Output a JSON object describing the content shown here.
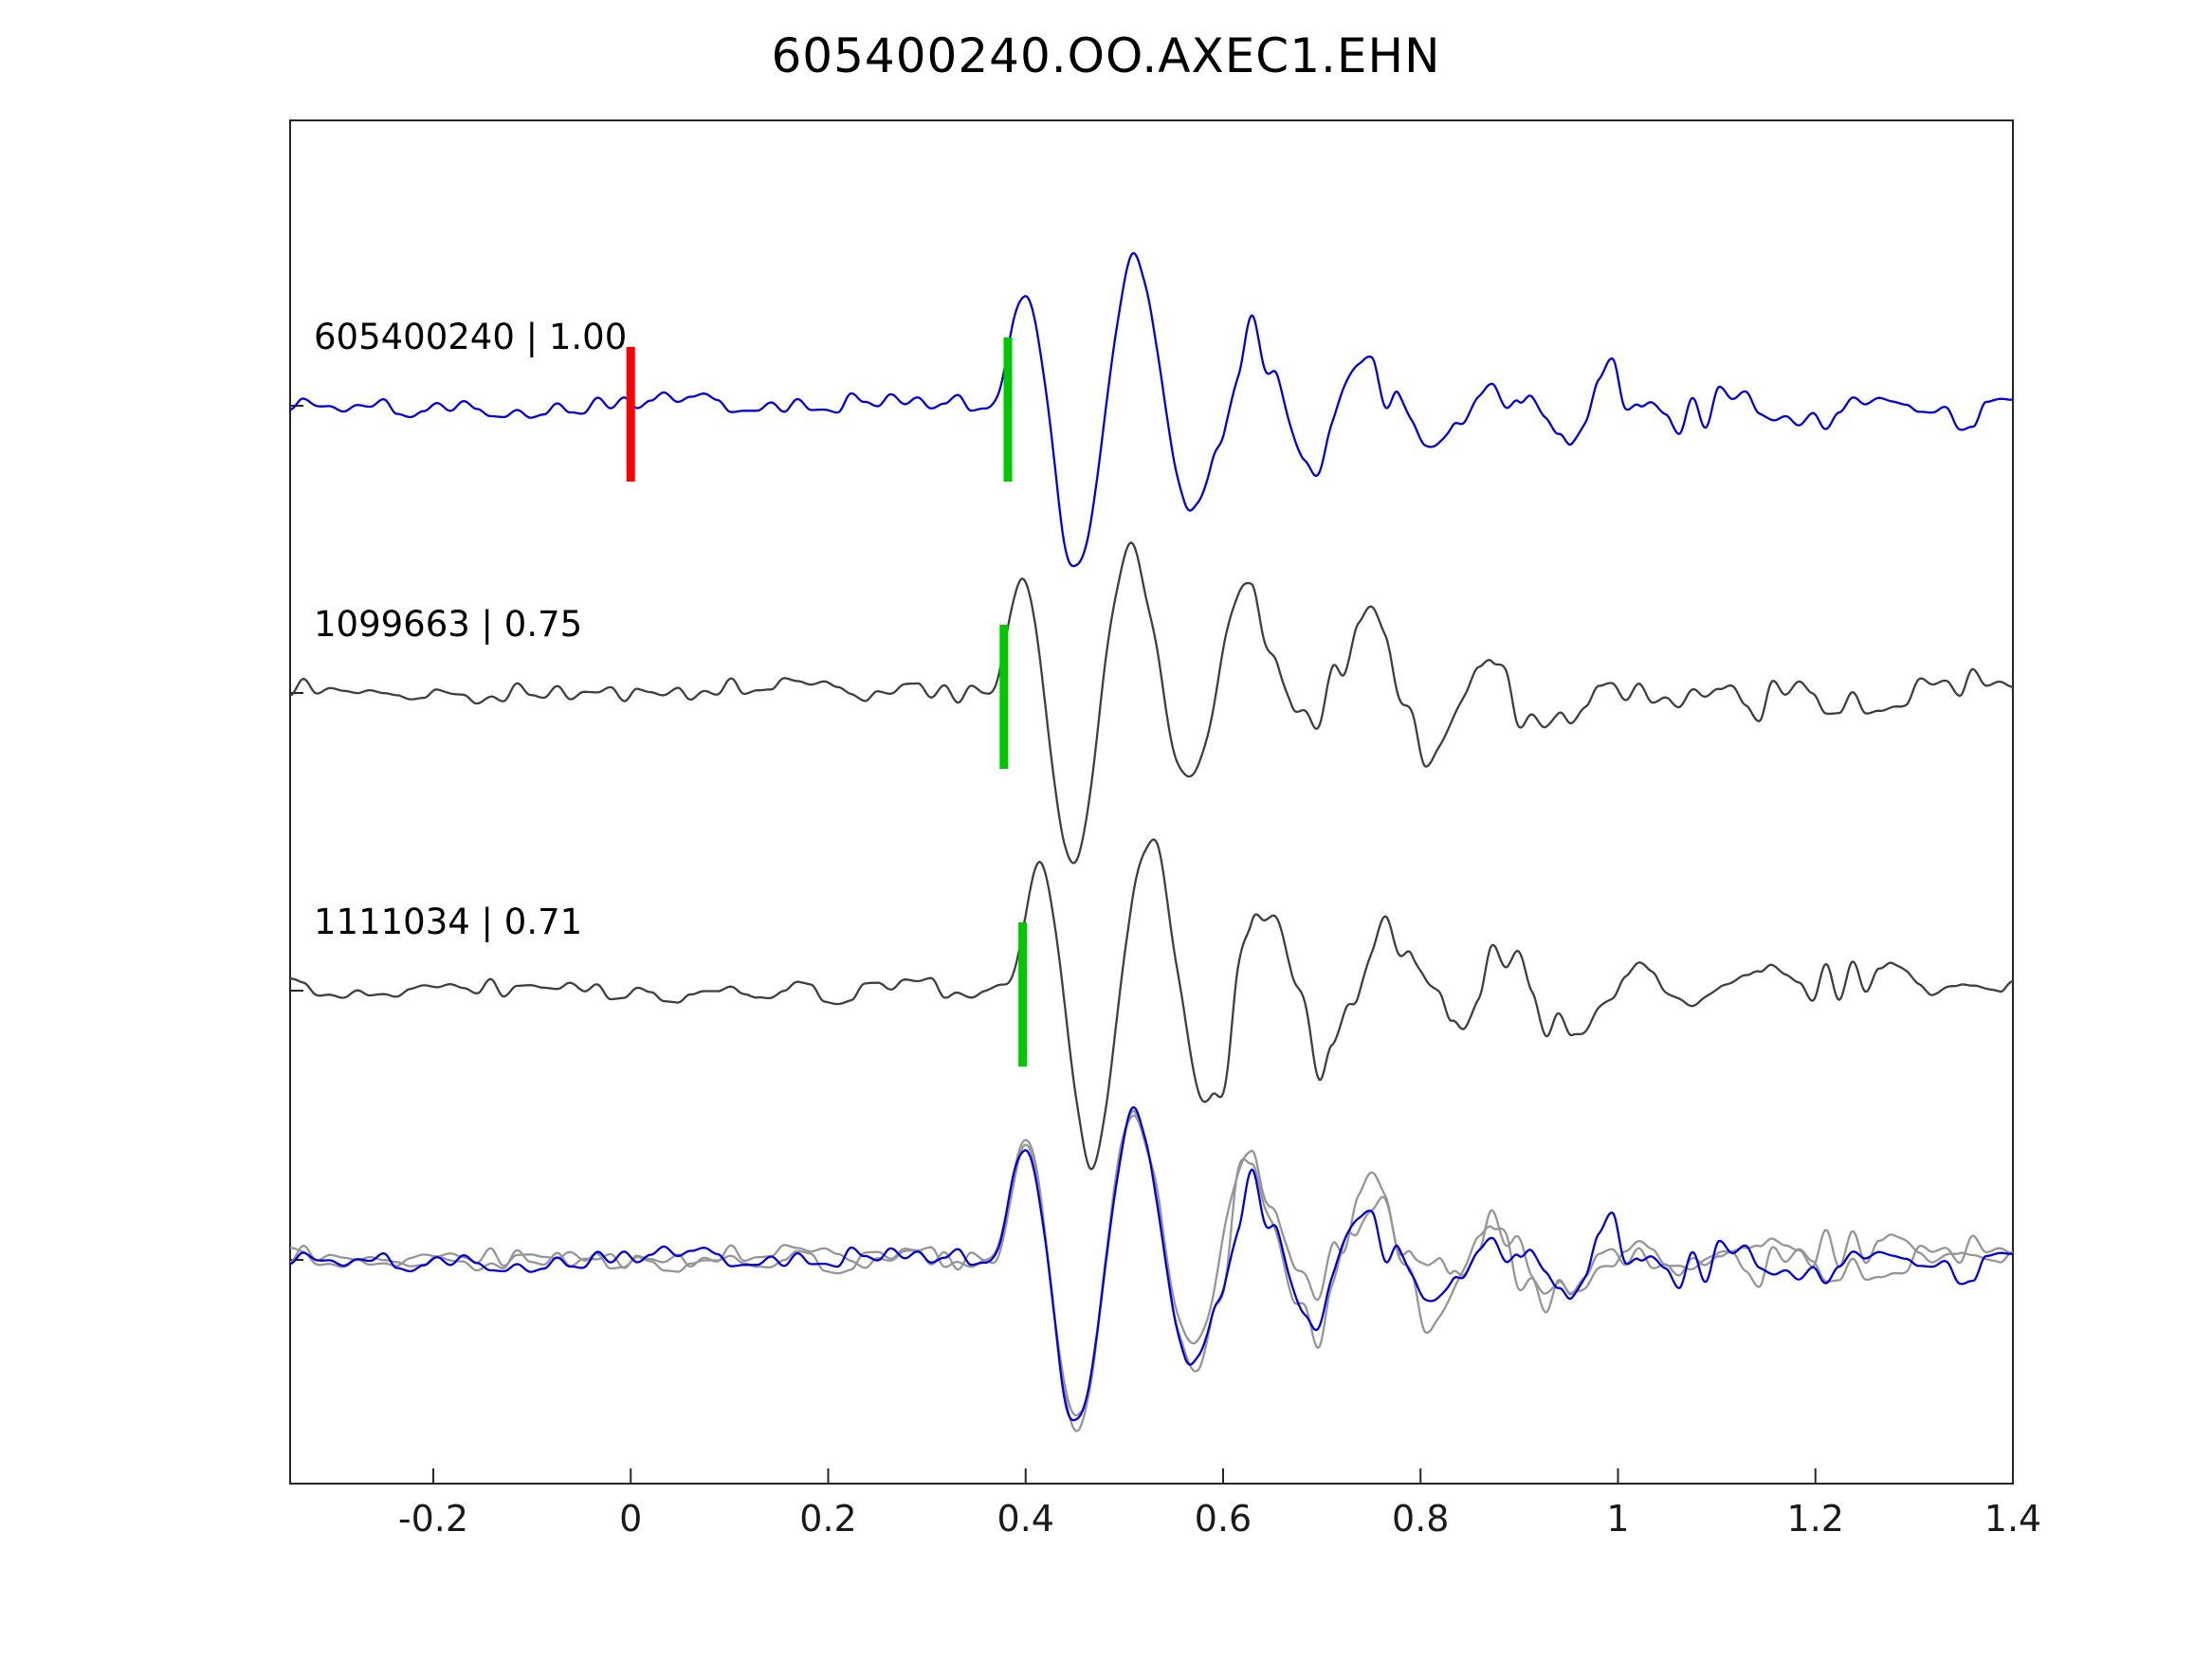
{
  "title": "605400240.OO.AXEC1.EHN",
  "chart_data": {
    "type": "line",
    "title": "605400240.OO.AXEC1.EHN",
    "xlabel": "",
    "ylabel": "",
    "grid": false,
    "legend": "none",
    "xlim": [
      -0.345,
      1.4
    ],
    "x_ticks": [
      -0.2,
      0,
      0.2,
      0.4,
      0.6,
      0.8,
      1,
      1.2,
      1.4
    ],
    "x_tick_labels": [
      "-0.2",
      "0",
      "0.2",
      "0.4",
      "0.6",
      "0.8",
      "1",
      "1.2",
      "1.4"
    ],
    "marker_colors": {
      "pick": "#00c800",
      "reference": "#ff0000"
    },
    "trace_colors": {
      "template": "#0000dd",
      "match": "#3f3f3f",
      "overlay_gray": "#969696"
    },
    "description": "Seismic waveform template matching: template event trace (blue) with reference time marker (red) at t=0 and pick marker (green); two matched detection traces (dark gray) with pick markers; bottom row shows all traces overlaid aligned on the pick.",
    "traces": [
      {
        "event_id": "605400240",
        "similarity": "1.00",
        "label": "605400240 | 1.00",
        "color": "#0000dd",
        "pick_time": 0.382,
        "ref_time": 0,
        "seed": 101,
        "amp": 1.0
      },
      {
        "event_id": "1099663",
        "similarity": "0.75",
        "label": "1099663 | 0.75",
        "color": "#3f3f3f",
        "pick_time": 0.378,
        "ref_time": null,
        "seed": 202,
        "amp": 1.0
      },
      {
        "event_id": "1111034",
        "similarity": "0.71",
        "label": "1111034 | 0.71",
        "color": "#3f3f3f",
        "pick_time": 0.397,
        "ref_time": null,
        "seed": 303,
        "amp": 1.05
      }
    ],
    "overlay": {
      "aligned_pick": 0.382,
      "members": [
        {
          "seed": 202,
          "color": "#969696"
        },
        {
          "seed": 303,
          "color": "#969696"
        },
        {
          "seed": 101,
          "color": "#0000dd"
        }
      ]
    }
  }
}
